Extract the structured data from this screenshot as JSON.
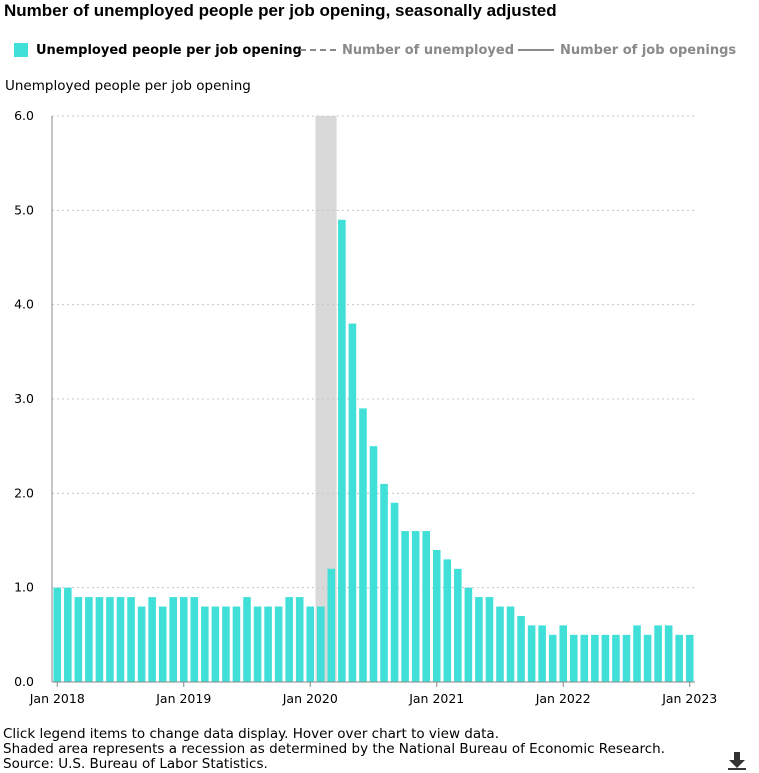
{
  "title": "Number of unemployed people per job opening, seasonally adjusted",
  "legend": {
    "items": [
      {
        "label": "Unemployed people per job opening",
        "style": "swatch",
        "color": "#40e0d8",
        "active": true
      },
      {
        "label": "Number of unemployed",
        "style": "dashed",
        "color": "#8a8a8a",
        "active": false
      },
      {
        "label": "Number of job openings",
        "style": "solid",
        "color": "#8a8a8a",
        "active": false
      }
    ]
  },
  "footnotes": [
    "Click legend items to change data display. Hover over chart to view data.",
    "Shaded area represents a recession as determined by the National Bureau of Economic Research.",
    "Source: U.S. Bureau of Labor Statistics."
  ],
  "download_icon": "download-arrow-icon",
  "chart_data": {
    "type": "bar",
    "ylabel": "Unemployed people per job opening",
    "ylim": [
      0,
      6
    ],
    "yticks": [
      "0.0",
      "1.0",
      "2.0",
      "3.0",
      "4.0",
      "5.0",
      "6.0"
    ],
    "xticks": [
      {
        "label": "Jan 2018",
        "index": 0
      },
      {
        "label": "Jan 2019",
        "index": 12
      },
      {
        "label": "Jan 2020",
        "index": 24
      },
      {
        "label": "Jan 2021",
        "index": 36
      },
      {
        "label": "Jan 2022",
        "index": 48
      },
      {
        "label": "Jan 2023",
        "index": 60
      }
    ],
    "grid": true,
    "bar_color": "#40e0d8",
    "recession": {
      "start_index": 25,
      "end_index": 26,
      "color": "#d9d9d9"
    },
    "series": [
      {
        "name": "Unemployed people per job opening",
        "values": [
          1.0,
          1.0,
          0.9,
          0.9,
          0.9,
          0.9,
          0.9,
          0.9,
          0.8,
          0.9,
          0.8,
          0.9,
          0.9,
          0.9,
          0.8,
          0.8,
          0.8,
          0.8,
          0.9,
          0.8,
          0.8,
          0.8,
          0.9,
          0.9,
          0.8,
          0.8,
          1.2,
          4.9,
          3.8,
          2.9,
          2.5,
          2.1,
          1.9,
          1.6,
          1.6,
          1.6,
          1.4,
          1.3,
          1.2,
          1.0,
          0.9,
          0.9,
          0.8,
          0.8,
          0.7,
          0.6,
          0.6,
          0.5,
          0.6,
          0.5,
          0.5,
          0.5,
          0.5,
          0.5,
          0.5,
          0.6,
          0.5,
          0.6,
          0.6,
          0.5,
          0.5
        ]
      }
    ]
  }
}
